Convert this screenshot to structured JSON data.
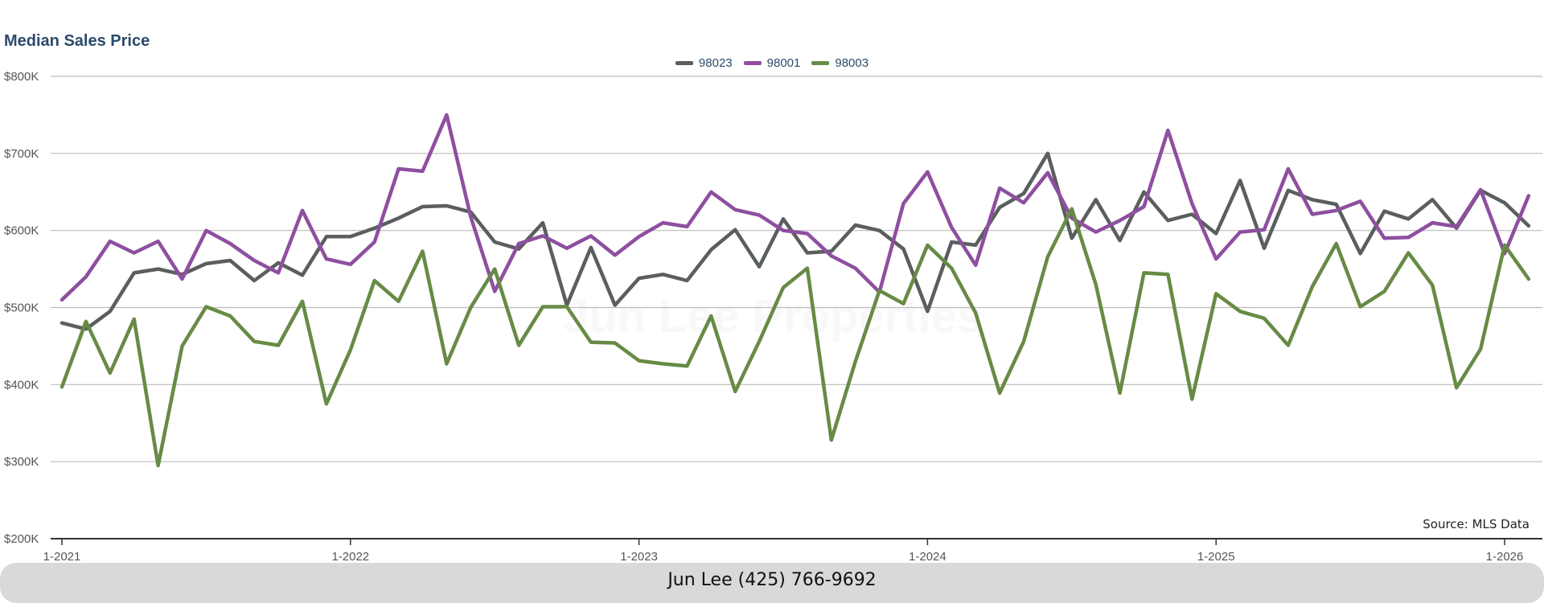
{
  "colors": {
    "s98023": "#5a5e5f",
    "s98001": "#8e4fa0",
    "s98003": "#678b45",
    "grid": "#bbbbbb",
    "axis": "#333333"
  },
  "watermark": "Jun Lee Properties",
  "footer": {
    "contact": "Jun Lee (425) 766-9692"
  },
  "source": "Source: MLS Data",
  "chart_data": {
    "type": "line",
    "title": "Median Sales Price",
    "xlabel": "",
    "ylabel": "",
    "ylim": [
      200000,
      800000
    ],
    "y_ticks": [
      "$800K",
      "$700K",
      "$600K",
      "$500K",
      "$400K",
      "$300K",
      "$200K"
    ],
    "x_ticks": [
      "1-2021",
      "1-2022",
      "1-2023",
      "1-2024",
      "1-2025",
      "1-2026"
    ],
    "grid": true,
    "legend_position": "top-center",
    "x": [
      "2021-01",
      "2021-02",
      "2021-03",
      "2021-04",
      "2021-05",
      "2021-06",
      "2021-07",
      "2021-08",
      "2021-09",
      "2021-10",
      "2021-11",
      "2021-12",
      "2022-01",
      "2022-02",
      "2022-03",
      "2022-04",
      "2022-05",
      "2022-06",
      "2022-07",
      "2022-08",
      "2022-09",
      "2022-10",
      "2022-11",
      "2022-12",
      "2023-01",
      "2023-02",
      "2023-03",
      "2023-04",
      "2023-05",
      "2023-06",
      "2023-07",
      "2023-08",
      "2023-09",
      "2023-10",
      "2023-11",
      "2023-12",
      "2024-01",
      "2024-02",
      "2024-03",
      "2024-04",
      "2024-05",
      "2024-06",
      "2024-07",
      "2024-08",
      "2024-09",
      "2024-10",
      "2024-11",
      "2024-12",
      "2025-01",
      "2025-02",
      "2025-03",
      "2025-04",
      "2025-05",
      "2025-06",
      "2025-07",
      "2025-08",
      "2025-09",
      "2025-10",
      "2025-11",
      "2025-12",
      "2026-01",
      "2026-02"
    ],
    "series": [
      {
        "name": "98023",
        "values": [
          480000,
          472000,
          495000,
          545000,
          550000,
          543000,
          557000,
          561000,
          535000,
          558000,
          542000,
          592000,
          592000,
          603000,
          616000,
          631000,
          632000,
          624000,
          585000,
          576000,
          610000,
          503000,
          578000,
          503000,
          538000,
          543000,
          535000,
          575000,
          601000,
          553000,
          615000,
          571000,
          573000,
          607000,
          600000,
          576000,
          495000,
          585000,
          581000,
          630000,
          648000,
          700000,
          590000,
          640000,
          587000,
          650000,
          613000,
          621000,
          596000,
          665000,
          577000,
          652000,
          640000,
          634000,
          570000,
          625000,
          615000,
          640000,
          603000,
          652000,
          636000,
          606000
        ]
      },
      {
        "name": "98001",
        "values": [
          510000,
          540000,
          586000,
          571000,
          586000,
          537000,
          600000,
          583000,
          561000,
          545000,
          626000,
          563000,
          556000,
          585000,
          680000,
          677000,
          750000,
          618000,
          521000,
          583000,
          593000,
          577000,
          593000,
          568000,
          592000,
          610000,
          605000,
          650000,
          627000,
          620000,
          600000,
          596000,
          567000,
          551000,
          520000,
          635000,
          676000,
          604000,
          555000,
          655000,
          636000,
          675000,
          616000,
          598000,
          613000,
          631000,
          730000,
          635000,
          563000,
          598000,
          601000,
          680000,
          621000,
          626000,
          638000,
          590000,
          591000,
          610000,
          605000,
          653000,
          570000,
          645000
        ]
      },
      {
        "name": "98003",
        "values": [
          397000,
          482000,
          415000,
          485000,
          295000,
          450000,
          501000,
          489000,
          456000,
          451000,
          508000,
          375000,
          445000,
          535000,
          508000,
          573000,
          427000,
          500000,
          550000,
          451000,
          501000,
          501000,
          455000,
          454000,
          431000,
          427000,
          424000,
          489000,
          391000,
          456000,
          526000,
          551000,
          328000,
          430000,
          522000,
          505000,
          581000,
          551000,
          493000,
          389000,
          456000,
          566000,
          628000,
          530000,
          389000,
          545000,
          543000,
          381000,
          518000,
          495000,
          486000,
          451000,
          527000,
          583000,
          501000,
          521000,
          571000,
          529000,
          396000,
          446000,
          581000,
          537000
        ]
      }
    ]
  }
}
